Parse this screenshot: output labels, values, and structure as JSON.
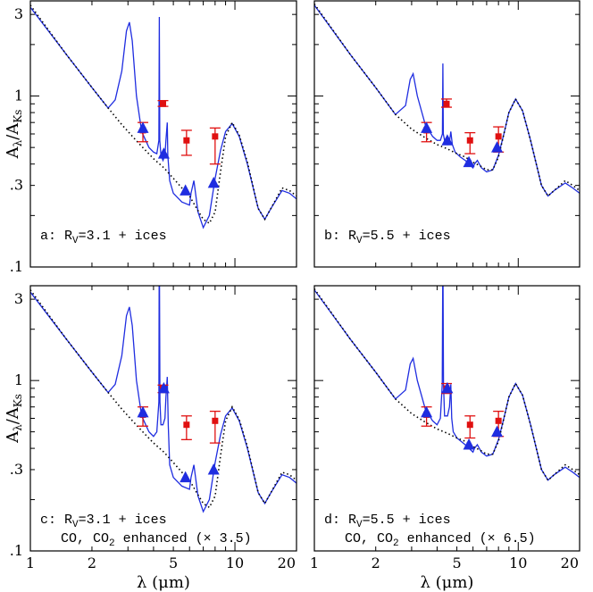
{
  "colors": {
    "model": "#1f2de0",
    "lutz": "#e01010",
    "thiswork": "#1f2de0",
    "baseline": "#000000",
    "frame": "#000000"
  },
  "chart_data": [
    {
      "type": "line",
      "panel": "a",
      "label_main": "a:  R",
      "label_sub": "V",
      "label_rest": "=3.1 + ices",
      "label_line2": "",
      "x_label": "λ (μm)",
      "y_label": "A_λ/A_Ks",
      "xlim": [
        1,
        20
      ],
      "ylim": [
        0.1,
        3.6
      ],
      "xscale": "log",
      "yscale": "log",
      "x_tick_labels": [
        "1",
        "2",
        "5",
        "10",
        "20"
      ],
      "y_tick_labels": [
        ".1",
        ".3",
        "1",
        "3"
      ],
      "series": [
        {
          "style": "solid",
          "x": [
            1.0,
            1.5,
            2.0,
            2.4,
            2.6,
            2.8,
            2.95,
            3.05,
            3.15,
            3.3,
            3.5,
            3.8,
            4.0,
            4.15,
            4.25,
            4.27,
            4.29,
            4.35,
            4.45,
            4.55,
            4.6,
            4.67,
            4.7,
            4.8,
            5.0,
            5.5,
            6.0,
            6.1,
            6.3,
            6.6,
            7.0,
            7.5,
            8.0,
            8.5,
            9.0,
            9.7,
            10.5,
            11.5,
            13.0,
            14.0,
            15.0,
            17.0,
            18.5,
            20.0
          ],
          "y": [
            3.3,
            1.75,
            1.12,
            0.85,
            0.95,
            1.4,
            2.4,
            2.7,
            2.1,
            1.0,
            0.62,
            0.5,
            0.47,
            0.46,
            0.55,
            2.9,
            0.55,
            0.45,
            0.42,
            0.45,
            0.55,
            0.7,
            0.45,
            0.32,
            0.27,
            0.24,
            0.23,
            0.27,
            0.32,
            0.21,
            0.17,
            0.2,
            0.33,
            0.48,
            0.62,
            0.69,
            0.58,
            0.4,
            0.22,
            0.19,
            0.22,
            0.28,
            0.27,
            0.25
          ]
        },
        {
          "style": "dotted",
          "x": [
            1.0,
            1.5,
            2.0,
            2.4,
            2.8,
            3.2,
            3.6,
            4.0,
            4.5,
            5.0,
            5.5,
            6.0,
            6.5,
            7.0,
            7.5,
            8.0,
            8.5,
            9.0,
            9.7,
            10.5,
            11.5,
            13.0,
            14.0,
            15.0,
            17.0,
            18.5,
            20.0
          ],
          "y": [
            3.4,
            1.75,
            1.12,
            0.85,
            0.68,
            0.57,
            0.49,
            0.43,
            0.38,
            0.33,
            0.29,
            0.26,
            0.22,
            0.19,
            0.18,
            0.21,
            0.36,
            0.58,
            0.7,
            0.59,
            0.41,
            0.22,
            0.19,
            0.22,
            0.29,
            0.28,
            0.26
          ]
        }
      ],
      "points_lutz": [
        {
          "x": 3.55,
          "y": 0.63,
          "lo": 0.54,
          "hi": 0.7
        },
        {
          "x": 4.45,
          "y": 0.9,
          "lo": 0.87,
          "hi": 0.94
        },
        {
          "x": 5.8,
          "y": 0.55,
          "lo": 0.45,
          "hi": 0.63
        },
        {
          "x": 8.0,
          "y": 0.58,
          "lo": 0.4,
          "hi": 0.65
        }
      ],
      "points_triangles": [
        {
          "x": 3.55,
          "y": 0.65
        },
        {
          "x": 4.49,
          "y": 0.46
        },
        {
          "x": 5.73,
          "y": 0.28
        },
        {
          "x": 7.87,
          "y": 0.31
        }
      ]
    },
    {
      "type": "line",
      "panel": "b",
      "label_main": "b:  R",
      "label_sub": "V",
      "label_rest": "=5.5 + ices",
      "label_line2": "",
      "xlim": [
        1,
        20
      ],
      "ylim": [
        0.1,
        3.6
      ],
      "xscale": "log",
      "yscale": "log",
      "series": [
        {
          "style": "solid",
          "x": [
            1.0,
            1.5,
            2.0,
            2.5,
            2.8,
            2.95,
            3.05,
            3.2,
            3.5,
            3.8,
            4.0,
            4.15,
            4.25,
            4.27,
            4.29,
            4.35,
            4.5,
            4.6,
            4.67,
            4.75,
            4.9,
            5.2,
            5.5,
            6.0,
            6.1,
            6.3,
            6.6,
            7.0,
            7.5,
            8.0,
            8.5,
            9.0,
            9.7,
            10.5,
            11.5,
            13.0,
            14.0,
            15.0,
            17.0,
            18.5,
            20.0
          ],
          "y": [
            3.4,
            1.75,
            1.12,
            0.78,
            0.88,
            1.25,
            1.35,
            1.0,
            0.68,
            0.58,
            0.55,
            0.55,
            0.6,
            1.55,
            0.6,
            0.55,
            0.52,
            0.54,
            0.62,
            0.52,
            0.47,
            0.44,
            0.42,
            0.38,
            0.4,
            0.42,
            0.38,
            0.36,
            0.37,
            0.45,
            0.6,
            0.8,
            0.96,
            0.82,
            0.55,
            0.3,
            0.26,
            0.28,
            0.31,
            0.29,
            0.27
          ]
        },
        {
          "style": "dotted",
          "x": [
            1.0,
            1.5,
            2.0,
            2.5,
            3.0,
            3.5,
            4.0,
            4.5,
            5.0,
            5.5,
            6.0,
            6.5,
            7.0,
            7.5,
            8.0,
            8.5,
            9.0,
            9.7,
            10.5,
            11.5,
            13.0,
            14.0,
            15.0,
            17.0,
            18.5,
            20.0
          ],
          "y": [
            3.45,
            1.75,
            1.12,
            0.78,
            0.64,
            0.57,
            0.52,
            0.49,
            0.46,
            0.44,
            0.41,
            0.39,
            0.37,
            0.37,
            0.44,
            0.6,
            0.8,
            0.96,
            0.82,
            0.55,
            0.3,
            0.26,
            0.28,
            0.32,
            0.3,
            0.28
          ]
        }
      ],
      "points_lutz": [
        {
          "x": 3.55,
          "y": 0.63,
          "lo": 0.54,
          "hi": 0.7
        },
        {
          "x": 4.45,
          "y": 0.9,
          "lo": 0.86,
          "hi": 0.96
        },
        {
          "x": 5.8,
          "y": 0.55,
          "lo": 0.46,
          "hi": 0.61
        },
        {
          "x": 8.0,
          "y": 0.58,
          "lo": 0.47,
          "hi": 0.66
        }
      ],
      "points_triangles": [
        {
          "x": 3.55,
          "y": 0.65
        },
        {
          "x": 4.49,
          "y": 0.55
        },
        {
          "x": 5.73,
          "y": 0.41
        },
        {
          "x": 7.87,
          "y": 0.5
        }
      ]
    },
    {
      "type": "line",
      "panel": "c",
      "label_main": "c:  R",
      "label_sub": "V",
      "label_rest": "=3.1 + ices",
      "label_line2": "CO, CO",
      "label_line2_sub": "2",
      "label_line2_rest": " enhanced (× 3.5)",
      "xlim": [
        1,
        20
      ],
      "ylim": [
        0.1,
        3.6
      ],
      "xscale": "log",
      "yscale": "log",
      "series": [
        {
          "style": "solid",
          "x": [
            1.0,
            1.5,
            2.0,
            2.4,
            2.6,
            2.8,
            2.95,
            3.05,
            3.15,
            3.3,
            3.5,
            3.8,
            4.0,
            4.15,
            4.25,
            4.26,
            4.28,
            4.3,
            4.35,
            4.45,
            4.55,
            4.6,
            4.67,
            4.72,
            4.8,
            5.0,
            5.5,
            6.0,
            6.1,
            6.3,
            6.6,
            7.0,
            7.5,
            8.0,
            8.5,
            9.0,
            9.7,
            10.5,
            11.5,
            13.0,
            14.0,
            15.0,
            17.0,
            18.5,
            20.0
          ],
          "y": [
            3.3,
            1.75,
            1.12,
            0.85,
            0.95,
            1.4,
            2.4,
            2.7,
            2.1,
            1.0,
            0.62,
            0.5,
            0.47,
            0.5,
            0.75,
            3.6,
            3.6,
            0.75,
            0.55,
            0.55,
            0.6,
            0.8,
            1.05,
            0.55,
            0.32,
            0.27,
            0.24,
            0.23,
            0.27,
            0.32,
            0.21,
            0.17,
            0.2,
            0.33,
            0.48,
            0.62,
            0.69,
            0.58,
            0.4,
            0.22,
            0.19,
            0.22,
            0.28,
            0.27,
            0.25
          ]
        },
        {
          "style": "dotted",
          "x": [
            1.0,
            1.5,
            2.0,
            2.4,
            2.8,
            3.2,
            3.6,
            4.0,
            4.5,
            5.0,
            5.5,
            6.0,
            6.5,
            7.0,
            7.5,
            8.0,
            8.5,
            9.0,
            9.7,
            10.5,
            11.5,
            13.0,
            14.0,
            15.0,
            17.0,
            18.5,
            20.0
          ],
          "y": [
            3.4,
            1.75,
            1.12,
            0.85,
            0.68,
            0.57,
            0.49,
            0.43,
            0.38,
            0.33,
            0.29,
            0.26,
            0.22,
            0.19,
            0.18,
            0.21,
            0.36,
            0.58,
            0.7,
            0.59,
            0.41,
            0.22,
            0.19,
            0.22,
            0.29,
            0.28,
            0.26
          ]
        }
      ],
      "points_lutz": [
        {
          "x": 3.55,
          "y": 0.63,
          "lo": 0.54,
          "hi": 0.7
        },
        {
          "x": 4.45,
          "y": 0.9,
          "lo": 0.85,
          "hi": 0.94
        },
        {
          "x": 5.8,
          "y": 0.55,
          "lo": 0.45,
          "hi": 0.62
        },
        {
          "x": 8.0,
          "y": 0.58,
          "lo": 0.43,
          "hi": 0.66
        }
      ],
      "points_triangles": [
        {
          "x": 3.55,
          "y": 0.65
        },
        {
          "x": 4.49,
          "y": 0.9
        },
        {
          "x": 5.73,
          "y": 0.27
        },
        {
          "x": 7.87,
          "y": 0.3
        }
      ]
    },
    {
      "type": "line",
      "panel": "d",
      "label_main": "d:  R",
      "label_sub": "V",
      "label_rest": "=5.5 + ices",
      "label_line2": "CO, CO",
      "label_line2_sub": "2",
      "label_line2_rest": " enhanced (× 6.5)",
      "xlim": [
        1,
        20
      ],
      "ylim": [
        0.1,
        3.6
      ],
      "xscale": "log",
      "yscale": "log",
      "series": [
        {
          "style": "solid",
          "x": [
            1.0,
            1.5,
            2.0,
            2.5,
            2.8,
            2.95,
            3.05,
            3.2,
            3.5,
            3.8,
            4.0,
            4.15,
            4.24,
            4.26,
            4.28,
            4.3,
            4.35,
            4.5,
            4.6,
            4.67,
            4.72,
            4.8,
            5.0,
            5.5,
            6.0,
            6.1,
            6.3,
            6.6,
            7.0,
            7.5,
            8.0,
            8.5,
            9.0,
            9.7,
            10.5,
            11.5,
            13.0,
            14.0,
            15.0,
            17.0,
            18.5,
            20.0
          ],
          "y": [
            3.4,
            1.75,
            1.12,
            0.78,
            0.88,
            1.25,
            1.35,
            1.0,
            0.68,
            0.58,
            0.55,
            0.6,
            0.95,
            3.6,
            3.6,
            0.95,
            0.62,
            0.62,
            0.7,
            0.95,
            0.6,
            0.5,
            0.46,
            0.42,
            0.38,
            0.4,
            0.42,
            0.38,
            0.36,
            0.37,
            0.45,
            0.6,
            0.8,
            0.96,
            0.82,
            0.55,
            0.3,
            0.26,
            0.28,
            0.31,
            0.29,
            0.27
          ]
        },
        {
          "style": "dotted",
          "x": [
            1.0,
            1.5,
            2.0,
            2.5,
            3.0,
            3.5,
            4.0,
            4.5,
            5.0,
            5.5,
            6.0,
            6.5,
            7.0,
            7.5,
            8.0,
            8.5,
            9.0,
            9.7,
            10.5,
            11.5,
            13.0,
            14.0,
            15.0,
            17.0,
            18.5,
            20.0
          ],
          "y": [
            3.45,
            1.75,
            1.12,
            0.78,
            0.64,
            0.57,
            0.52,
            0.49,
            0.46,
            0.44,
            0.41,
            0.39,
            0.37,
            0.37,
            0.44,
            0.6,
            0.8,
            0.96,
            0.82,
            0.55,
            0.3,
            0.26,
            0.28,
            0.32,
            0.3,
            0.28
          ]
        }
      ],
      "points_lutz": [
        {
          "x": 3.55,
          "y": 0.63,
          "lo": 0.54,
          "hi": 0.7
        },
        {
          "x": 4.45,
          "y": 0.9,
          "lo": 0.84,
          "hi": 0.96
        },
        {
          "x": 5.8,
          "y": 0.55,
          "lo": 0.46,
          "hi": 0.62
        },
        {
          "x": 8.0,
          "y": 0.58,
          "lo": 0.47,
          "hi": 0.66
        }
      ],
      "points_triangles": [
        {
          "x": 3.55,
          "y": 0.65
        },
        {
          "x": 4.49,
          "y": 0.9
        },
        {
          "x": 5.73,
          "y": 0.42
        },
        {
          "x": 7.87,
          "y": 0.5
        }
      ]
    }
  ]
}
